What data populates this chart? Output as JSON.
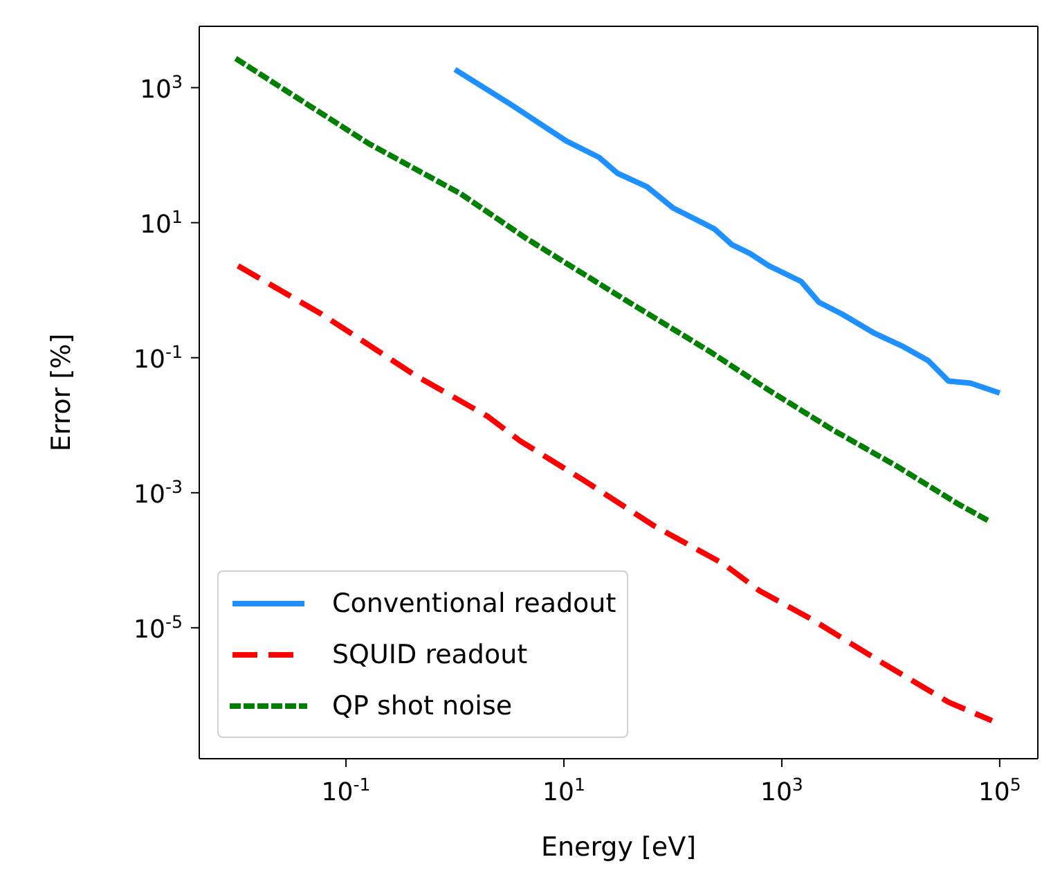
{
  "chart_data": {
    "type": "line",
    "xlabel": "Energy [eV]",
    "ylabel": "Error [%]",
    "log": "xy",
    "legend": "bottom left",
    "xlim": [
      0.0045,
      224000
    ],
    "ylim": [
      1.15e-07,
      8100
    ],
    "xticks": [
      {
        "value": 0.1,
        "label": "10$^{-1}$"
      },
      {
        "value": 10,
        "label": "10$^{1}$"
      },
      {
        "value": 1000,
        "label": "10$^{3}$"
      },
      {
        "value": 100000,
        "label": "10$^{5}$"
      }
    ],
    "yticks": [
      {
        "value": 1e-05,
        "label": "10$^{-5}$"
      },
      {
        "value": 0.001,
        "label": "10$^{-3}$"
      },
      {
        "value": 0.1,
        "label": "10$^{-1}$"
      },
      {
        "value": 10,
        "label": "10$^{1}$"
      },
      {
        "value": 1000,
        "label": "10$^{3}$"
      }
    ],
    "series": [
      {
        "name": "Conventional readout",
        "color": "#1e90ff",
        "line_style": "solid",
        "x": [
          1,
          3.2,
          10.5,
          21,
          31,
          58,
          100,
          240,
          350,
          510,
          760,
          1500,
          2200,
          3600,
          7100,
          12600,
          22000,
          34000,
          54000,
          100000
        ],
        "values": [
          1860,
          575,
          162,
          93,
          54,
          34,
          16.6,
          8.1,
          4.7,
          3.5,
          2.3,
          1.35,
          0.66,
          0.44,
          0.23,
          0.15,
          0.091,
          0.045,
          0.042,
          0.03
        ]
      },
      {
        "name": "SQUID readout",
        "color": "#ff0000",
        "line_style": "dashed",
        "x": [
          0.0102,
          0.06,
          0.43,
          2,
          4,
          15.5,
          68,
          290,
          630,
          1860,
          7900,
          34000,
          85000
        ],
        "values": [
          2.3,
          0.44,
          0.055,
          0.0135,
          0.0058,
          0.0015,
          0.00032,
          8.9e-05,
          3.5e-05,
          1.35e-05,
          3.2e-06,
          7.9e-07,
          4.2e-07
        ]
      },
      {
        "name": "QP shot noise",
        "color": "#008000",
        "line_style": "dotted",
        "x": [
          0.0102,
          0.16,
          1.12,
          4.4,
          37,
          214,
          760,
          2950,
          11500,
          41000,
          85000
        ],
        "values": [
          2570,
          150,
          27,
          6,
          0.71,
          0.126,
          0.033,
          0.0085,
          0.00245,
          0.00069,
          0.00036
        ]
      }
    ]
  }
}
